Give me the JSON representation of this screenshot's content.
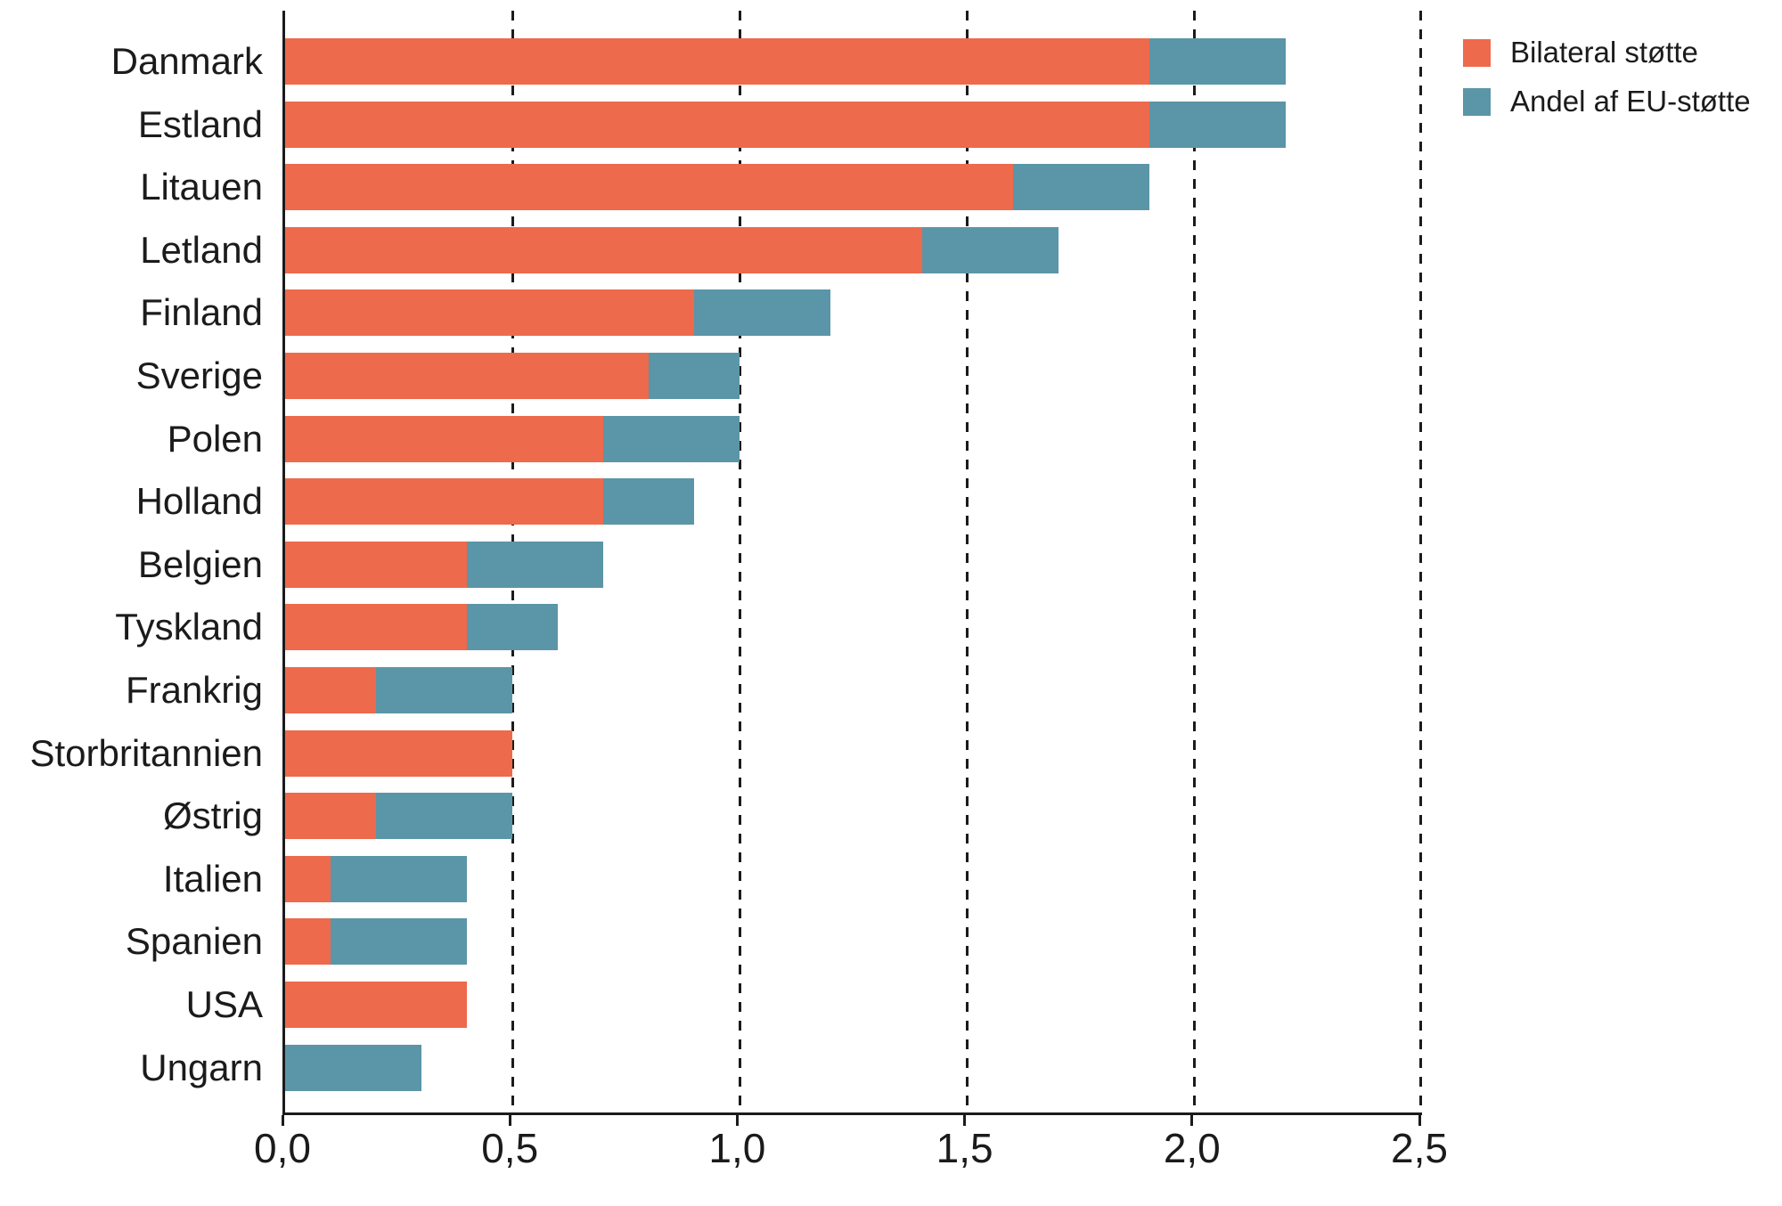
{
  "colors": {
    "bilateral": "#ED6A4C",
    "eu_share": "#5B95A8",
    "axis": "#1b1b1b",
    "background": "#ffffff"
  },
  "legend": {
    "items": [
      {
        "label": "Bilateral støtte",
        "color": "#ED6A4C"
      },
      {
        "label": "Andel af EU-støtte",
        "color": "#5B95A8"
      }
    ]
  },
  "chart_data": {
    "type": "bar",
    "orientation": "horizontal",
    "stacked": true,
    "title": "",
    "xlabel": "",
    "ylabel": "",
    "xlim": [
      0,
      2.5
    ],
    "xticks": [
      0,
      0.5,
      1.0,
      1.5,
      2.0,
      2.5
    ],
    "xtick_labels": [
      "0,0",
      "0,5",
      "1,0",
      "1,5",
      "2,0",
      "2,5"
    ],
    "grid": "vertical dotted gridlines",
    "legend_position": "top-right",
    "categories": [
      "Danmark",
      "Estland",
      "Litauen",
      "Letland",
      "Finland",
      "Sverige",
      "Polen",
      "Holland",
      "Belgien",
      "Tyskland",
      "Frankrig",
      "Storbritannien",
      "Østrig",
      "Italien",
      "Spanien",
      "USA",
      "Ungarn"
    ],
    "series": [
      {
        "name": "Bilateral støtte",
        "color": "#ED6A4C",
        "values": [
          1.9,
          1.9,
          1.6,
          1.4,
          0.9,
          0.8,
          0.7,
          0.7,
          0.4,
          0.4,
          0.2,
          0.5,
          0.2,
          0.1,
          0.1,
          0.4,
          0.0
        ]
      },
      {
        "name": "Andel af EU-støtte",
        "color": "#5B95A8",
        "values": [
          0.3,
          0.3,
          0.3,
          0.3,
          0.3,
          0.2,
          0.3,
          0.2,
          0.3,
          0.2,
          0.3,
          0.0,
          0.3,
          0.3,
          0.3,
          0.0,
          0.3
        ]
      }
    ],
    "totals": [
      2.2,
      2.2,
      1.9,
      1.7,
      1.2,
      1.0,
      1.0,
      0.9,
      0.7,
      0.6,
      0.5,
      0.5,
      0.5,
      0.4,
      0.4,
      0.4,
      0.3
    ]
  }
}
